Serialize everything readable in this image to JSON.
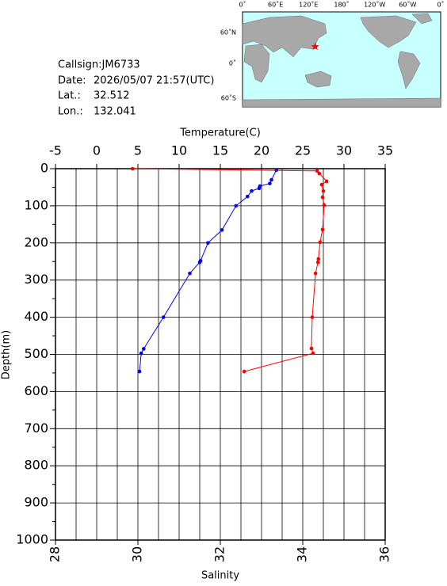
{
  "info": {
    "callsign": "Callsign:JM6733",
    "date_label": "Date:",
    "date": "2026/05/07 21:57(UTC)",
    "lat_label": "Lat.:",
    "lat": 32.512,
    "lon_label": "Lon.:",
    "lon": 132.041
  },
  "map": {
    "lon_labels": [
      "0˚",
      "60˚E",
      "120˚E",
      "180˚",
      "120˚W",
      "60˚W",
      "0˚"
    ],
    "lat_labels": [
      "60˚N",
      "0˚",
      "60˚S"
    ],
    "marker_color": "#ff0000"
  },
  "chart_data": {
    "type": "line",
    "xlabel": "Salinity",
    "x2label": "Temperature(C)",
    "ylabel": "Depth(m)",
    "xlim": [
      28,
      36
    ],
    "xticks": [
      28,
      30,
      32,
      34,
      36
    ],
    "minor_xticks": [
      28.5,
      29,
      29.5,
      30.5,
      31,
      31.5,
      32.5,
      33,
      33.5,
      34.5,
      35,
      35.5
    ],
    "x2lim": [
      -5,
      35
    ],
    "x2ticks": [
      -5,
      0,
      5,
      10,
      15,
      20,
      25,
      30,
      35
    ],
    "ylim": [
      0,
      1000
    ],
    "yticks": [
      0,
      100,
      200,
      300,
      400,
      500,
      600,
      700,
      800,
      900,
      1000
    ],
    "minor_yticks": [
      50,
      150,
      250,
      350,
      450,
      550,
      650,
      750,
      850,
      950
    ],
    "y_inverted": true,
    "grid": true,
    "series": [
      {
        "color": "#0000ff",
        "axis": "x2",
        "x": [
          21.8,
          21.2,
          21.0,
          19.8,
          19.7,
          18.8,
          18.3,
          16.9,
          15.2,
          13.5,
          12.6,
          12.5,
          11.3,
          8.1,
          5.7,
          5.4,
          5.2
        ],
        "y": [
          4,
          30,
          40,
          47,
          53,
          60,
          75,
          100,
          165,
          200,
          248,
          252,
          282,
          400,
          485,
          497,
          546
        ]
      },
      {
        "color": "#ff0000",
        "axis": "x",
        "x": [
          29.87,
          34.35,
          34.4,
          34.58,
          34.46,
          34.5,
          34.48,
          34.52,
          34.48,
          34.42,
          34.38,
          34.37,
          34.31,
          34.23,
          34.21,
          34.25,
          32.58
        ],
        "y": [
          0,
          6,
          13,
          34,
          43,
          60,
          77,
          98,
          164,
          198,
          243,
          252,
          282,
          400,
          484,
          497,
          546
        ]
      }
    ]
  }
}
